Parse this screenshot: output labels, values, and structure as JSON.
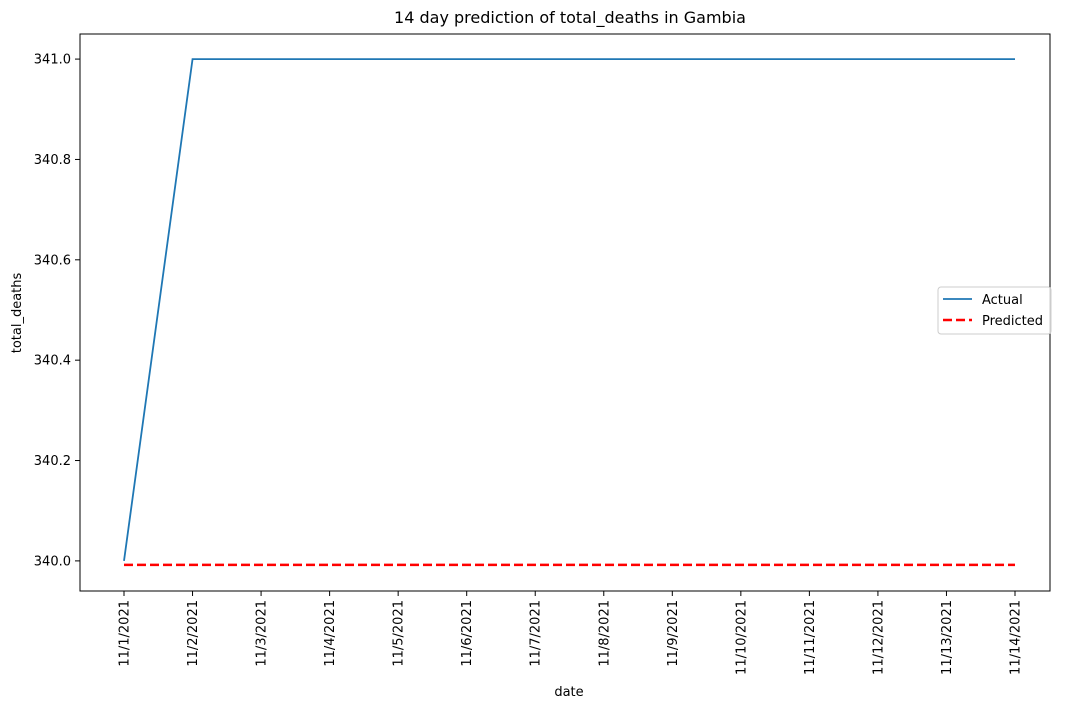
{
  "chart_data": {
    "type": "line",
    "title": "14 day prediction of total_deaths in Gambia",
    "xlabel": "date",
    "ylabel": "total_deaths",
    "x": [
      "11/1/2021",
      "11/2/2021",
      "11/3/2021",
      "11/4/2021",
      "11/5/2021",
      "11/6/2021",
      "11/7/2021",
      "11/8/2021",
      "11/9/2021",
      "11/10/2021",
      "11/11/2021",
      "11/12/2021",
      "11/13/2021",
      "11/14/2021"
    ],
    "yticks": [
      "340.0",
      "340.2",
      "340.4",
      "340.6",
      "340.8",
      "341.0"
    ],
    "ylim": [
      339.94,
      341.05
    ],
    "grid": false,
    "legend_position": "center-right",
    "series": [
      {
        "name": "Actual",
        "color": "#1f77b4",
        "style": "solid",
        "values": [
          340,
          341,
          341,
          341,
          341,
          341,
          341,
          341,
          341,
          341,
          341,
          341,
          341,
          341
        ]
      },
      {
        "name": "Predicted",
        "color": "#ff0000",
        "style": "dashed",
        "values": [
          339.992,
          339.992,
          339.992,
          339.992,
          339.992,
          339.992,
          339.992,
          339.992,
          339.992,
          339.992,
          339.992,
          339.992,
          339.992,
          339.992
        ]
      }
    ]
  }
}
